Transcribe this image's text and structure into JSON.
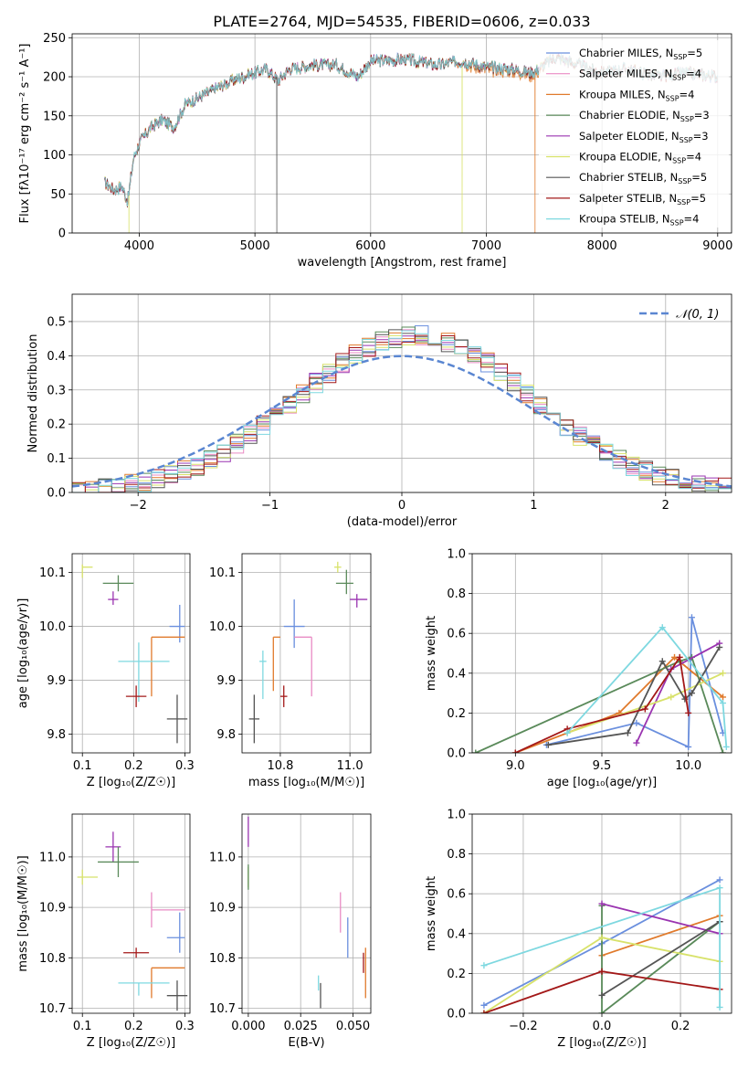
{
  "title": "PLATE=2764, MJD=54535, FIBERID=0606, z=0.033",
  "colors": {
    "Chabrier MILES": "#6a8fde",
    "Salpeter MILES": "#e98bc4",
    "Kroupa MILES": "#e07a2c",
    "Chabrier ELODIE": "#5a8a5a",
    "Salpeter ELODIE": "#9a34b0",
    "Kroupa ELODIE": "#d8e26a",
    "Chabrier STELIB": "#555555",
    "Salpeter STELIB": "#a31818",
    "Kroupa STELIB": "#7ed8e0"
  },
  "chart_data": [
    {
      "type": "line",
      "panel": "spectrum",
      "xlabel": "wavelength [Angstrom, rest frame]",
      "ylabel": "Flux [fλ10⁻¹⁷ erg cm⁻² s⁻¹ A⁻¹]",
      "xlim": [
        3420,
        9120
      ],
      "ylim": [
        0,
        255
      ],
      "xticks": [
        "4000",
        "5000",
        "6000",
        "7000",
        "8000",
        "9000"
      ],
      "yticks": [
        "0",
        "50",
        "100",
        "150",
        "200",
        "250"
      ],
      "legend_position": "top-right",
      "legend": [
        {
          "model": "Chabrier MILES",
          "nssp": "5"
        },
        {
          "model": "Salpeter MILES",
          "nssp": "4"
        },
        {
          "model": "Kroupa MILES",
          "nssp": "4"
        },
        {
          "model": "Chabrier ELODIE",
          "nssp": "3"
        },
        {
          "model": "Salpeter ELODIE",
          "nssp": "3"
        },
        {
          "model": "Kroupa ELODIE",
          "nssp": "4"
        },
        {
          "model": "Chabrier STELIB",
          "nssp": "5"
        },
        {
          "model": "Salpeter STELIB",
          "nssp": "5"
        },
        {
          "model": "Kroupa STELIB",
          "nssp": "4"
        }
      ],
      "continuum": [
        [
          3700,
          65
        ],
        [
          3780,
          55
        ],
        [
          3850,
          60
        ],
        [
          3900,
          40
        ],
        [
          3950,
          95
        ],
        [
          4000,
          115
        ],
        [
          4100,
          135
        ],
        [
          4200,
          145
        ],
        [
          4300,
          135
        ],
        [
          4400,
          165
        ],
        [
          4600,
          180
        ],
        [
          4800,
          195
        ],
        [
          5000,
          205
        ],
        [
          5100,
          210
        ],
        [
          5200,
          195
        ],
        [
          5300,
          210
        ],
        [
          5500,
          215
        ],
        [
          5700,
          215
        ],
        [
          5890,
          200
        ],
        [
          6000,
          220
        ],
        [
          6300,
          222
        ],
        [
          6563,
          215
        ],
        [
          6800,
          220
        ],
        [
          7000,
          212
        ],
        [
          7200,
          210
        ],
        [
          7400,
          205
        ],
        [
          7600,
          225
        ],
        [
          7800,
          215
        ],
        [
          8000,
          205
        ],
        [
          8200,
          210
        ],
        [
          8500,
          200
        ],
        [
          8700,
          205
        ],
        [
          9000,
          200
        ]
      ],
      "dropouts": [
        {
          "x": 3910,
          "model": "Kroupa ELODIE"
        },
        {
          "x": 5190,
          "model": "Chabrier STELIB"
        },
        {
          "x": 6790,
          "model": "Kroupa ELODIE"
        },
        {
          "x": 7420,
          "model": "Kroupa MILES"
        }
      ]
    },
    {
      "type": "step",
      "panel": "residuals",
      "xlabel": "(data-model)/error",
      "ylabel": "Normed distribution",
      "xlim": [
        -2.5,
        2.5
      ],
      "ylim": [
        0,
        0.58
      ],
      "xticks": [
        "−2",
        "−1",
        "0",
        "1",
        "2"
      ],
      "yticks": [
        "0.0",
        "0.1",
        "0.2",
        "0.3",
        "0.4",
        "0.5"
      ],
      "normal_label": "𝒩(0, 1)",
      "normal_color": "#5a86d1",
      "bin_width": 0.1,
      "legend_position": "top-right"
    },
    {
      "type": "errorbar",
      "panel": "age-vs-Z",
      "xlabel": "Z [log₁₀(Z/Z☉)]",
      "ylabel": "age  [log₁₀(age/yr)]",
      "xlim": [
        0.08,
        0.31
      ],
      "ylim": [
        9.765,
        10.135
      ],
      "xticks": [
        "0.1",
        "0.2",
        "0.3"
      ],
      "yticks": [
        "9.8",
        "9.9",
        "10.0",
        "10.1"
      ],
      "points": [
        {
          "model": "Kroupa ELODIE",
          "x": 0.1,
          "y": 10.11,
          "xerr": [
            0.0,
            0.02
          ],
          "yerr": [
            0.02,
            0.005
          ]
        },
        {
          "model": "Chabrier ELODIE",
          "x": 0.17,
          "y": 10.08,
          "xerr": [
            0.03,
            0.03
          ],
          "yerr": [
            0.015,
            0.015
          ]
        },
        {
          "model": "Salpeter ELODIE",
          "x": 0.16,
          "y": 10.05,
          "xerr": [
            0.01,
            0.01
          ],
          "yerr": [
            0.01,
            0.015
          ]
        },
        {
          "model": "Chabrier MILES",
          "x": 0.29,
          "y": 10.0,
          "xerr": [
            0.02,
            0.01
          ],
          "yerr": [
            0.03,
            0.04
          ]
        },
        {
          "model": "Kroupa MILES",
          "x": 0.235,
          "y": 9.98,
          "xerr": [
            0.0,
            0.065
          ],
          "yerr": [
            0.11,
            0.0
          ]
        },
        {
          "model": "Kroupa STELIB",
          "x": 0.21,
          "y": 9.935,
          "xerr": [
            0.04,
            0.06
          ],
          "yerr": [
            0.075,
            0.035
          ]
        },
        {
          "model": "Salpeter STELIB",
          "x": 0.205,
          "y": 9.87,
          "xerr": [
            0.02,
            0.02
          ],
          "yerr": [
            0.02,
            0.02
          ]
        },
        {
          "model": "Chabrier STELIB",
          "x": 0.285,
          "y": 9.828,
          "xerr": [
            0.02,
            0.02
          ],
          "yerr": [
            0.045,
            0.045
          ]
        }
      ]
    },
    {
      "type": "errorbar",
      "panel": "age-vs-mass",
      "xlabel": "mass [log₁₀(M/M☉)]",
      "ylabel": "",
      "xlim": [
        10.69,
        11.06
      ],
      "ylim": [
        9.765,
        10.135
      ],
      "xticks": [
        "10.8",
        "11.0"
      ],
      "yticks": [
        "9.8",
        "9.9",
        "10.0",
        "10.1"
      ],
      "points": [
        {
          "model": "Kroupa ELODIE",
          "x": 10.965,
          "y": 10.11,
          "xerr": [
            0.01,
            0.01
          ],
          "yerr": [
            0.01,
            0.01
          ]
        },
        {
          "model": "Chabrier ELODIE",
          "x": 10.99,
          "y": 10.08,
          "xerr": [
            0.03,
            0.02
          ],
          "yerr": [
            0.02,
            0.025
          ]
        },
        {
          "model": "Salpeter ELODIE",
          "x": 11.02,
          "y": 10.05,
          "xerr": [
            0.02,
            0.03
          ],
          "yerr": [
            0.015,
            0.01
          ]
        },
        {
          "model": "Chabrier MILES",
          "x": 10.84,
          "y": 10.0,
          "xerr": [
            0.03,
            0.03
          ],
          "yerr": [
            0.04,
            0.05
          ]
        },
        {
          "model": "Kroupa MILES",
          "x": 10.78,
          "y": 9.98,
          "xerr": [
            0.0,
            0.02
          ],
          "yerr": [
            0.1,
            0.0
          ]
        },
        {
          "model": "Salpeter MILES",
          "x": 10.89,
          "y": 9.98,
          "xerr": [
            0.05,
            0.0
          ],
          "yerr": [
            0.11,
            0.0
          ]
        },
        {
          "model": "Kroupa STELIB",
          "x": 10.75,
          "y": 9.935,
          "xerr": [
            0.01,
            0.01
          ],
          "yerr": [
            0.07,
            0.02
          ]
        },
        {
          "model": "Salpeter STELIB",
          "x": 10.81,
          "y": 9.87,
          "xerr": [
            0.01,
            0.01
          ],
          "yerr": [
            0.02,
            0.02
          ]
        },
        {
          "model": "Chabrier STELIB",
          "x": 10.725,
          "y": 9.828,
          "xerr": [
            0.015,
            0.015
          ],
          "yerr": [
            0.045,
            0.045
          ]
        }
      ]
    },
    {
      "type": "line",
      "panel": "mass-weight-vs-age",
      "xlabel": "age  [log₁₀(age/yr)]",
      "ylabel": "mass weight",
      "xlim": [
        8.75,
        10.25
      ],
      "ylim": [
        0,
        1.0
      ],
      "xticks": [
        "9.0",
        "9.5",
        "10.0"
      ],
      "yticks": [
        "0.0",
        "0.2",
        "0.4",
        "0.6",
        "0.8",
        "1.0"
      ],
      "series": [
        {
          "model": "Chabrier MILES",
          "x": [
            9.18,
            9.7,
            10.0,
            10.02,
            10.2
          ],
          "y": [
            0.04,
            0.15,
            0.03,
            0.68,
            0.1
          ]
        },
        {
          "model": "Kroupa MILES",
          "x": [
            9.0,
            9.6,
            9.92,
            10.2
          ],
          "y": [
            0.0,
            0.2,
            0.48,
            0.28
          ]
        },
        {
          "model": "Chabrier ELODIE",
          "x": [
            8.77,
            9.95,
            10.02,
            10.2
          ],
          "y": [
            0.0,
            0.46,
            0.48,
            0.0
          ]
        },
        {
          "model": "Salpeter ELODIE",
          "x": [
            9.7,
            9.9,
            10.18
          ],
          "y": [
            0.05,
            0.42,
            0.55
          ]
        },
        {
          "model": "Kroupa ELODIE",
          "x": [
            9.3,
            9.9,
            10.2
          ],
          "y": [
            0.1,
            0.28,
            0.4
          ]
        },
        {
          "model": "Chabrier STELIB",
          "x": [
            9.19,
            9.65,
            9.85,
            9.98,
            10.02,
            10.18
          ],
          "y": [
            0.04,
            0.1,
            0.46,
            0.27,
            0.3,
            0.53
          ]
        },
        {
          "model": "Salpeter STELIB",
          "x": [
            9.0,
            9.3,
            9.75,
            9.95,
            10.0
          ],
          "y": [
            0.0,
            0.12,
            0.22,
            0.48,
            0.2
          ]
        },
        {
          "model": "Kroupa STELIB",
          "x": [
            9.3,
            9.85,
            10.2,
            10.22
          ],
          "y": [
            0.1,
            0.63,
            0.25,
            0.03
          ]
        }
      ]
    },
    {
      "type": "errorbar",
      "panel": "mass-vs-Z",
      "xlabel": "Z [log₁₀(Z/Z☉)]",
      "ylabel": "mass [log₁₀(M/M☉)]",
      "xlim": [
        0.08,
        0.31
      ],
      "ylim": [
        10.69,
        11.085
      ],
      "xticks": [
        "0.1",
        "0.2",
        "0.3"
      ],
      "yticks": [
        "10.7",
        "10.8",
        "10.9",
        "11.0"
      ],
      "points": [
        {
          "model": "Salpeter ELODIE",
          "x": 0.16,
          "y": 11.02,
          "xerr": [
            0.015,
            0.015
          ],
          "yerr": [
            0.03,
            0.03
          ]
        },
        {
          "model": "Chabrier ELODIE",
          "x": 0.17,
          "y": 10.99,
          "xerr": [
            0.04,
            0.04
          ],
          "yerr": [
            0.03,
            0.03
          ]
        },
        {
          "model": "Kroupa ELODIE",
          "x": 0.1,
          "y": 10.96,
          "xerr": [
            0.01,
            0.03
          ],
          "yerr": [
            0.015,
            0.015
          ]
        },
        {
          "model": "Salpeter MILES",
          "x": 0.235,
          "y": 10.895,
          "xerr": [
            0.0,
            0.065
          ],
          "yerr": [
            0.035,
            0.035
          ]
        },
        {
          "model": "Chabrier MILES",
          "x": 0.29,
          "y": 10.84,
          "xerr": [
            0.025,
            0.01
          ],
          "yerr": [
            0.03,
            0.05
          ]
        },
        {
          "model": "Salpeter STELIB",
          "x": 0.205,
          "y": 10.81,
          "xerr": [
            0.025,
            0.025
          ],
          "yerr": [
            0.01,
            0.01
          ]
        },
        {
          "model": "Kroupa MILES",
          "x": 0.235,
          "y": 10.78,
          "xerr": [
            0.0,
            0.065
          ],
          "yerr": [
            0.06,
            0.0
          ]
        },
        {
          "model": "Kroupa STELIB",
          "x": 0.21,
          "y": 10.75,
          "xerr": [
            0.04,
            0.06
          ],
          "yerr": [
            0.025,
            0.0
          ]
        },
        {
          "model": "Chabrier STELIB",
          "x": 0.285,
          "y": 10.725,
          "xerr": [
            0.02,
            0.02
          ],
          "yerr": [
            0.03,
            0.03
          ]
        }
      ]
    },
    {
      "type": "errorbar",
      "panel": "mass-vs-EBV",
      "xlabel": "E(B-V)",
      "ylabel": "",
      "xlim": [
        -0.003,
        0.0585
      ],
      "ylim": [
        10.69,
        11.085
      ],
      "xticks": [
        "0.000",
        "0.025",
        "0.050"
      ],
      "yticks": [
        "10.7",
        "10.8",
        "10.9",
        "11.0"
      ],
      "points": [
        {
          "model": "Salpeter ELODIE",
          "x": 0.0,
          "y": 11.05,
          "xerr": [
            0.0,
            0.0
          ],
          "yerr": [
            0.03,
            0.03
          ]
        },
        {
          "model": "Kroupa ELODIE",
          "x": 0.0,
          "y": 10.96,
          "xerr": [
            0.0,
            0.0
          ],
          "yerr": [
            0.02,
            0.02
          ]
        },
        {
          "model": "Chabrier ELODIE",
          "x": 0.0,
          "y": 10.96,
          "xerr": [
            0.0,
            0.0
          ],
          "yerr": [
            0.025,
            0.025
          ]
        },
        {
          "model": "Salpeter MILES",
          "x": 0.044,
          "y": 10.89,
          "xerr": [
            0.0,
            0.0
          ],
          "yerr": [
            0.04,
            0.04
          ]
        },
        {
          "model": "Chabrier MILES",
          "x": 0.0475,
          "y": 10.84,
          "xerr": [
            0.0,
            0.0
          ],
          "yerr": [
            0.04,
            0.04
          ]
        },
        {
          "model": "Kroupa MILES",
          "x": 0.056,
          "y": 10.77,
          "xerr": [
            0.0,
            0.0
          ],
          "yerr": [
            0.05,
            0.05
          ]
        },
        {
          "model": "Salpeter STELIB",
          "x": 0.055,
          "y": 10.79,
          "xerr": [
            0.0,
            0.0
          ],
          "yerr": [
            0.02,
            0.02
          ]
        },
        {
          "model": "Kroupa STELIB",
          "x": 0.0335,
          "y": 10.75,
          "xerr": [
            0.0,
            0.0
          ],
          "yerr": [
            0.015,
            0.015
          ]
        },
        {
          "model": "Chabrier STELIB",
          "x": 0.0345,
          "y": 10.725,
          "xerr": [
            0.0,
            0.0
          ],
          "yerr": [
            0.025,
            0.025
          ]
        }
      ]
    },
    {
      "type": "line",
      "panel": "mass-weight-vs-Z",
      "xlabel": "Z [log₁₀(Z/Z☉)]",
      "ylabel": "mass weight",
      "xlim": [
        -0.33,
        0.33
      ],
      "ylim": [
        0,
        1.0
      ],
      "xticks": [
        "−0.2",
        "0.0",
        "0.2"
      ],
      "yticks": [
        "0.0",
        "0.2",
        "0.4",
        "0.6",
        "0.8",
        "1.0"
      ],
      "series": [
        {
          "model": "Chabrier MILES",
          "x": [
            -0.3,
            0.0,
            0.3
          ],
          "y": [
            0.04,
            0.35,
            0.67
          ]
        },
        {
          "model": "Kroupa MILES",
          "x": [
            0.0,
            0.3
          ],
          "y": [
            0.29,
            0.49
          ]
        },
        {
          "model": "Chabrier ELODIE",
          "x": [
            0.0,
            0.0,
            0.3
          ],
          "y": [
            0.54,
            0.0,
            0.46
          ]
        },
        {
          "model": "Salpeter ELODIE",
          "x": [
            0.0,
            0.3
          ],
          "y": [
            0.55,
            0.4
          ]
        },
        {
          "model": "Kroupa ELODIE",
          "x": [
            -0.3,
            0.0,
            0.3
          ],
          "y": [
            0.0,
            0.38,
            0.26
          ]
        },
        {
          "model": "Chabrier STELIB",
          "x": [
            0.0,
            0.3
          ],
          "y": [
            0.09,
            0.46
          ]
        },
        {
          "model": "Salpeter STELIB",
          "x": [
            -0.3,
            0.0,
            0.3
          ],
          "y": [
            0.0,
            0.21,
            0.12
          ]
        },
        {
          "model": "Kroupa STELIB",
          "x": [
            -0.3,
            0.3,
            0.3
          ],
          "y": [
            0.24,
            0.63,
            0.03
          ]
        }
      ]
    }
  ]
}
